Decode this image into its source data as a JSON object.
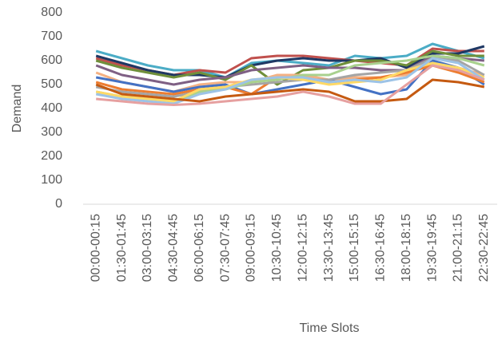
{
  "chart_data": {
    "type": "line",
    "x_label": "Time Slots",
    "y_label": "Demand",
    "categories": [
      "00:00-00:15",
      "01:30-01:45",
      "03:00-03:15",
      "04:30-04:45",
      "06:00-06:15",
      "07:30-07:45",
      "09:00-09:15",
      "10:30-10:45",
      "12:00-12:15",
      "13:30-13:45",
      "15:00-15:15",
      "16:30-16:45",
      "18:00-18:15",
      "19:30-19:45",
      "21:00-21:15",
      "22:30-22:45"
    ],
    "ylim": [
      0,
      800
    ],
    "yticks": [
      0,
      100,
      200,
      300,
      400,
      500,
      600,
      700,
      800
    ],
    "grid": false,
    "series": [
      {
        "color": "#4bacc6",
        "values": [
          640,
          610,
          580,
          560,
          560,
          530,
          590,
          600,
          590,
          580,
          620,
          610,
          620,
          670,
          640,
          610
        ]
      },
      {
        "color": "#c0504d",
        "values": [
          610,
          580,
          560,
          540,
          560,
          550,
          610,
          620,
          620,
          610,
          600,
          590,
          580,
          650,
          640,
          640
        ]
      },
      {
        "color": "#1f3864",
        "values": [
          620,
          590,
          560,
          540,
          540,
          530,
          580,
          600,
          610,
          600,
          600,
          610,
          570,
          630,
          630,
          660
        ]
      },
      {
        "color": "#6f8f3a",
        "values": [
          600,
          570,
          550,
          530,
          550,
          520,
          580,
          500,
          560,
          570,
          600,
          600,
          580,
          640,
          620,
          620
        ]
      },
      {
        "color": "#7f6084",
        "values": [
          580,
          540,
          520,
          500,
          520,
          530,
          560,
          570,
          580,
          570,
          570,
          560,
          560,
          620,
          610,
          600
        ]
      },
      {
        "color": "#f4b183",
        "values": [
          550,
          510,
          490,
          470,
          500,
          510,
          510,
          540,
          540,
          520,
          530,
          530,
          540,
          600,
          570,
          540
        ]
      },
      {
        "color": "#4472c4",
        "values": [
          530,
          510,
          490,
          470,
          490,
          500,
          460,
          480,
          500,
          520,
          490,
          460,
          480,
          600,
          570,
          500
        ]
      },
      {
        "color": "#ed7d31",
        "values": [
          510,
          480,
          470,
          460,
          480,
          490,
          460,
          530,
          530,
          510,
          520,
          530,
          550,
          580,
          550,
          510
        ]
      },
      {
        "color": "#a5a5a5",
        "values": [
          490,
          470,
          460,
          450,
          470,
          490,
          500,
          510,
          520,
          520,
          540,
          550,
          560,
          610,
          600,
          540
        ]
      },
      {
        "color": "#a9d18e",
        "values": [
          470,
          450,
          440,
          430,
          470,
          480,
          510,
          520,
          540,
          540,
          580,
          590,
          600,
          620,
          610,
          580
        ]
      },
      {
        "color": "#ffd966",
        "values": [
          470,
          450,
          440,
          430,
          480,
          490,
          520,
          530,
          520,
          500,
          510,
          520,
          560,
          590,
          570,
          530
        ]
      },
      {
        "color": "#9dc3e6",
        "values": [
          460,
          440,
          430,
          420,
          460,
          480,
          520,
          530,
          530,
          510,
          520,
          510,
          530,
          610,
          590,
          520
        ]
      },
      {
        "color": "#c55a11",
        "values": [
          500,
          460,
          450,
          440,
          430,
          450,
          460,
          470,
          480,
          470,
          430,
          430,
          440,
          520,
          510,
          490
        ]
      },
      {
        "color": "#e6a0a0",
        "values": [
          440,
          430,
          420,
          415,
          420,
          430,
          440,
          450,
          470,
          450,
          420,
          420,
          500,
          580,
          560,
          520
        ]
      }
    ]
  }
}
